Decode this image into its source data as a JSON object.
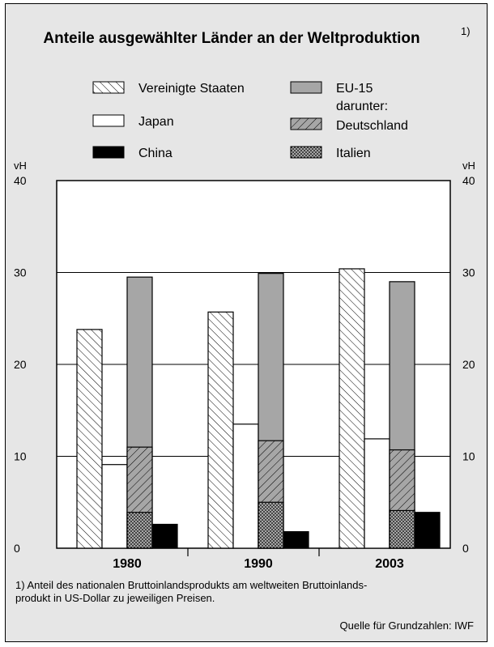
{
  "chart_data": {
    "type": "bar",
    "title": "Anteile ausgewählter Länder an der Weltproduktion",
    "title_footnote_mark": "1)",
    "ylabel_left": "vH",
    "ylabel_right": "vH",
    "ylim": [
      0,
      40
    ],
    "yticks": [
      0,
      10,
      20,
      30,
      40
    ],
    "grid": true,
    "categories": [
      "1980",
      "1990",
      "2003"
    ],
    "series": [
      {
        "name": "Vereinigte Staaten",
        "pattern": "hatch-back",
        "values": [
          23.8,
          25.7,
          30.4
        ]
      },
      {
        "name": "Japan",
        "pattern": "white",
        "values": [
          9.1,
          13.5,
          11.9
        ]
      },
      {
        "name": "EU-15",
        "pattern": "gray",
        "values": [
          29.5,
          29.9,
          29.0
        ]
      },
      {
        "name": "Deutschland",
        "pattern": "hatch-fwd",
        "values": [
          11.0,
          11.7,
          10.7
        ]
      },
      {
        "name": "Italien",
        "pattern": "dots",
        "values": [
          3.9,
          5.0,
          4.1
        ]
      },
      {
        "name": "China",
        "pattern": "black",
        "values": [
          2.6,
          1.8,
          3.9
        ]
      }
    ],
    "legend": {
      "placement": "top",
      "entries": [
        {
          "label": "Vereinigte Staaten",
          "pattern": "hatch-back"
        },
        {
          "label": "Japan",
          "pattern": "white"
        },
        {
          "label": "China",
          "pattern": "black"
        },
        {
          "label": "EU-15",
          "pattern": "gray"
        },
        {
          "label": "Deutschland",
          "pattern": "hatch-fwd"
        },
        {
          "label": "Italien",
          "pattern": "dots"
        }
      ],
      "sub_heading": "darunter:"
    },
    "footnote": [
      "1) Anteil des nationalen Bruttoinlandsprodukts am weltweiten Bruttoinlands-",
      "produkt in US-Dollar zu jeweiligen Preisen."
    ],
    "source": "Quelle für Grundzahlen: IWF"
  },
  "colors": {
    "panel_background": "#e6e6e6",
    "plot_background": "#ffffff",
    "eu_gray": "#a6a6a6",
    "black": "#000000",
    "white": "#ffffff"
  }
}
